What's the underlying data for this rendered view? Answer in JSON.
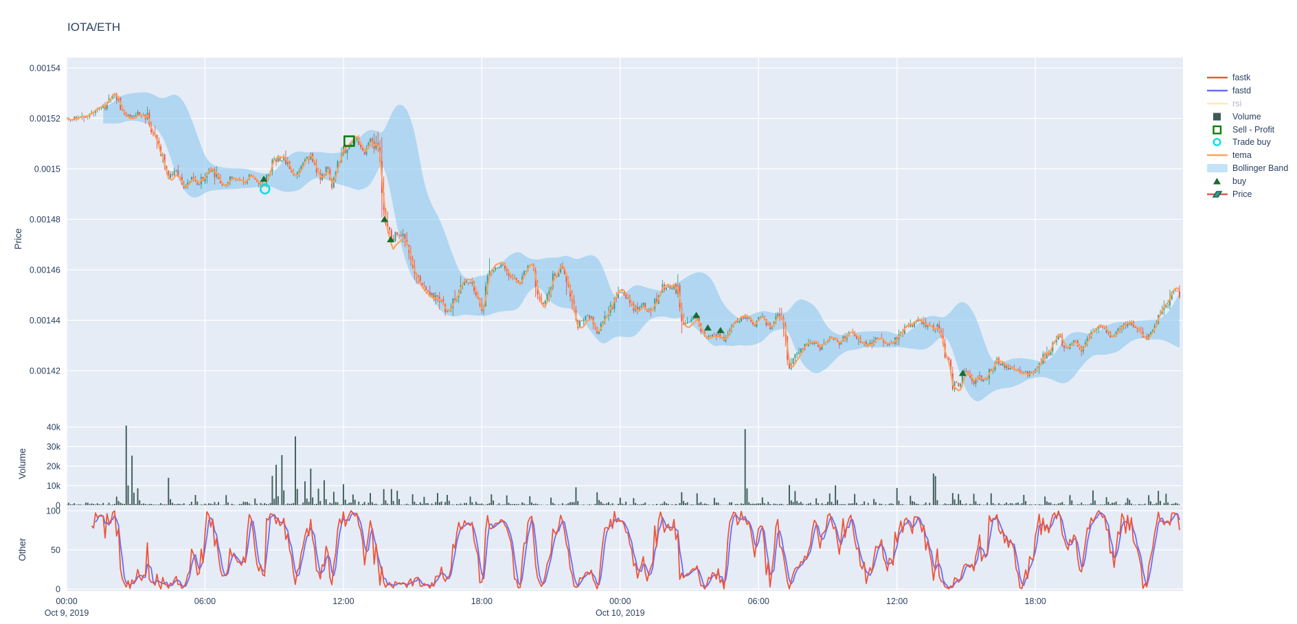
{
  "title": "IOTA/ETH",
  "colors": {
    "plot_bg": "#E5ECF6",
    "grid": "#ffffff",
    "text": "#2a3f5f",
    "dim_text": "#b0b6c5",
    "candle_up": "#2F9E84",
    "candle_down": "#E8544E",
    "tema": "#FFA15A",
    "bollinger_fill": "rgba(133,197,236,0.55)",
    "volume_bar": "#3D5A56",
    "fastk": "#EF553B",
    "fastd": "#636EFA",
    "rsi": "#FFE8B3",
    "buy_marker": "#156E2E",
    "sell_marker": "#0B7D0B",
    "trade_buy_marker": "#00E0E6"
  },
  "legend": {
    "items": [
      {
        "id": "fastk",
        "label": "fastk",
        "type": "line",
        "color": "#EF553B"
      },
      {
        "id": "fastd",
        "label": "fastd",
        "type": "line",
        "color": "#636EFA"
      },
      {
        "id": "rsi",
        "label": "rsi",
        "type": "line",
        "color": "#FFE8B3",
        "dim": true
      },
      {
        "id": "volume",
        "label": "Volume",
        "type": "square",
        "color": "#3D5A56"
      },
      {
        "id": "sell-profit",
        "label": "Sell - Profit",
        "type": "open-square",
        "color": "#0B7D0B"
      },
      {
        "id": "trade-buy",
        "label": "Trade buy",
        "type": "open-circle",
        "color": "#00E0E6"
      },
      {
        "id": "tema",
        "label": "tema",
        "type": "line",
        "color": "#FFA15A"
      },
      {
        "id": "bollinger",
        "label": "Bollinger Band",
        "type": "band",
        "color": "#C3E3F7"
      },
      {
        "id": "buy",
        "label": "buy",
        "type": "triangle",
        "color": "#156E2E"
      },
      {
        "id": "price",
        "label": "Price",
        "type": "candle",
        "color": "#2F9E84"
      }
    ]
  },
  "chart_data": {
    "type": "candlestick",
    "title": "IOTA/ETH",
    "grid": true,
    "legend_position": "right",
    "x_axis": {
      "start": "Oct 9, 2019 00:00",
      "hours_span": 48.4,
      "bars_per_hour": 12,
      "ticks": [
        {
          "h": 0,
          "label": "00:00",
          "day": "Oct 9, 2019"
        },
        {
          "h": 6,
          "label": "06:00"
        },
        {
          "h": 12,
          "label": "12:00"
        },
        {
          "h": 18,
          "label": "18:00"
        },
        {
          "h": 24,
          "label": "00:00",
          "day": "Oct 10, 2019"
        },
        {
          "h": 30,
          "label": "06:00"
        },
        {
          "h": 36,
          "label": "12:00"
        },
        {
          "h": 42,
          "label": "18:00"
        }
      ]
    },
    "panes": [
      {
        "name": "price",
        "ylabel": "Price",
        "range": [
          0.0014,
          0.001544
        ],
        "ticks": [
          {
            "v": 0.00154,
            "label": "0.00154"
          },
          {
            "v": 0.00152,
            "label": "0.00152"
          },
          {
            "v": 0.0015,
            "label": "0.0015"
          },
          {
            "v": 0.00148,
            "label": "0.00148"
          },
          {
            "v": 0.00146,
            "label": "0.00146"
          },
          {
            "v": 0.00144,
            "label": "0.00144"
          },
          {
            "v": 0.00142,
            "label": "0.00142"
          }
        ],
        "series": [
          "Price",
          "tema",
          "Bollinger Band",
          "buy",
          "Sell - Profit",
          "Trade buy"
        ]
      },
      {
        "name": "volume",
        "ylabel": "Volume",
        "range": [
          0,
          43000
        ],
        "ticks": [
          {
            "v": 40000,
            "label": "40k"
          },
          {
            "v": 30000,
            "label": "30k"
          },
          {
            "v": 20000,
            "label": "20k"
          },
          {
            "v": 10000,
            "label": "10k"
          },
          {
            "v": 0,
            "label": "0"
          }
        ],
        "series": [
          "Volume"
        ]
      },
      {
        "name": "other",
        "ylabel": "Other",
        "range": [
          0,
          100
        ],
        "ticks": [
          {
            "v": 100,
            "label": "100"
          },
          {
            "v": 50,
            "label": "50"
          },
          {
            "v": 0,
            "label": "0"
          }
        ],
        "series": [
          "fastk",
          "fastd"
        ]
      }
    ],
    "price_anchors": [
      [
        0,
        0.00152
      ],
      [
        0.5,
        0.00152
      ],
      [
        1.3,
        0.001523
      ],
      [
        1.7,
        0.001525
      ],
      [
        2.1,
        0.00153
      ],
      [
        2.35,
        0.001524
      ],
      [
        2.7,
        0.001521
      ],
      [
        3.1,
        0.001522
      ],
      [
        3.5,
        0.00152
      ],
      [
        3.9,
        0.001509
      ],
      [
        4.15,
        0.001505
      ],
      [
        4.45,
        0.001497
      ],
      [
        4.8,
        0.001499
      ],
      [
        5.1,
        0.001493
      ],
      [
        5.4,
        0.001496
      ],
      [
        5.7,
        0.001494
      ],
      [
        6.2,
        0.0015
      ],
      [
        6.5,
        0.001497
      ],
      [
        6.8,
        0.001493
      ],
      [
        7.2,
        0.001497
      ],
      [
        7.7,
        0.001494
      ],
      [
        8.0,
        0.001498
      ],
      [
        8.3,
        0.001495
      ],
      [
        8.55,
        0.001493
      ],
      [
        8.8,
        0.001501
      ],
      [
        9.2,
        0.001504
      ],
      [
        9.55,
        0.001503
      ],
      [
        9.85,
        0.001497
      ],
      [
        10.25,
        0.001503
      ],
      [
        10.65,
        0.001505
      ],
      [
        11.0,
        0.001495
      ],
      [
        11.3,
        0.001501
      ],
      [
        11.5,
        0.001493
      ],
      [
        11.9,
        0.001505
      ],
      [
        12.2,
        0.00151
      ],
      [
        12.6,
        0.001512
      ],
      [
        12.9,
        0.001506
      ],
      [
        13.2,
        0.001512
      ],
      [
        13.5,
        0.001505
      ],
      [
        13.7,
        0.00149
      ],
      [
        13.85,
        0.001479
      ],
      [
        14.05,
        0.001471
      ],
      [
        14.3,
        0.001475
      ],
      [
        14.6,
        0.001472
      ],
      [
        14.9,
        0.001462
      ],
      [
        15.2,
        0.001458
      ],
      [
        15.5,
        0.001453
      ],
      [
        15.8,
        0.00145
      ],
      [
        16.1,
        0.001449
      ],
      [
        16.5,
        0.001443
      ],
      [
        16.8,
        0.001448
      ],
      [
        17.3,
        0.001456
      ],
      [
        17.7,
        0.001452
      ],
      [
        18.0,
        0.001444
      ],
      [
        18.4,
        0.001461
      ],
      [
        18.85,
        0.001461
      ],
      [
        19.3,
        0.001457
      ],
      [
        19.65,
        0.001455
      ],
      [
        20.1,
        0.001463
      ],
      [
        20.65,
        0.001446
      ],
      [
        21.0,
        0.001455
      ],
      [
        21.5,
        0.001462
      ],
      [
        21.9,
        0.001447
      ],
      [
        22.1,
        0.001438
      ],
      [
        22.45,
        0.001441
      ],
      [
        22.7,
        0.001442
      ],
      [
        23.0,
        0.001435
      ],
      [
        23.3,
        0.00144
      ],
      [
        23.9,
        0.00145
      ],
      [
        24.2,
        0.00145
      ],
      [
        24.6,
        0.001444
      ],
      [
        25.0,
        0.001446
      ],
      [
        25.3,
        0.001443
      ],
      [
        25.8,
        0.001453
      ],
      [
        26.5,
        0.001453
      ],
      [
        26.65,
        0.001442
      ],
      [
        26.85,
        0.001438
      ],
      [
        27.3,
        0.001441
      ],
      [
        27.65,
        0.001433
      ],
      [
        28.05,
        0.001435
      ],
      [
        28.5,
        0.001432
      ],
      [
        28.95,
        0.00144
      ],
      [
        29.5,
        0.001441
      ],
      [
        29.8,
        0.001438
      ],
      [
        30.1,
        0.001442
      ],
      [
        30.5,
        0.001437
      ],
      [
        30.75,
        0.001441
      ],
      [
        31.0,
        0.001442
      ],
      [
        31.3,
        0.001423
      ],
      [
        31.6,
        0.001426
      ],
      [
        31.9,
        0.001429
      ],
      [
        32.3,
        0.001431
      ],
      [
        32.7,
        0.001429
      ],
      [
        33.1,
        0.001433
      ],
      [
        33.5,
        0.001431
      ],
      [
        34.0,
        0.001436
      ],
      [
        34.4,
        0.001432
      ],
      [
        34.8,
        0.00143
      ],
      [
        35.2,
        0.001434
      ],
      [
        35.6,
        0.00143
      ],
      [
        36.0,
        0.001433
      ],
      [
        36.55,
        0.001438
      ],
      [
        37.0,
        0.00144
      ],
      [
        37.4,
        0.001437
      ],
      [
        37.7,
        0.001438
      ],
      [
        38.1,
        0.001428
      ],
      [
        38.4,
        0.001415
      ],
      [
        38.65,
        0.001414
      ],
      [
        38.9,
        0.001419
      ],
      [
        39.1,
        0.001419
      ],
      [
        39.25,
        0.001415
      ],
      [
        39.5,
        0.001417
      ],
      [
        39.8,
        0.001417
      ],
      [
        40.0,
        0.001419
      ],
      [
        40.3,
        0.001424
      ],
      [
        40.9,
        0.001421
      ],
      [
        41.3,
        0.001419
      ],
      [
        41.7,
        0.001419
      ],
      [
        42.0,
        0.001421
      ],
      [
        42.3,
        0.001425
      ],
      [
        42.6,
        0.001428
      ],
      [
        43.0,
        0.001434
      ],
      [
        43.3,
        0.001428
      ],
      [
        43.7,
        0.001432
      ],
      [
        44.0,
        0.001428
      ],
      [
        44.3,
        0.001434
      ],
      [
        44.9,
        0.001438
      ],
      [
        45.35,
        0.001433
      ],
      [
        45.85,
        0.001438
      ],
      [
        46.15,
        0.001439
      ],
      [
        46.5,
        0.001435
      ],
      [
        46.85,
        0.001432
      ],
      [
        47.35,
        0.001442
      ],
      [
        47.75,
        0.001446
      ],
      [
        48.05,
        0.001453
      ],
      [
        48.33,
        0.001447
      ]
    ],
    "volume_spikes": [
      [
        2.2,
        4000
      ],
      [
        2.6,
        40500
      ],
      [
        2.85,
        23500
      ],
      [
        3.05,
        8000
      ],
      [
        4.45,
        13000
      ],
      [
        5.6,
        3500
      ],
      [
        6.9,
        5000
      ],
      [
        8.2,
        3000
      ],
      [
        8.9,
        14500
      ],
      [
        9.1,
        20500
      ],
      [
        9.3,
        25500
      ],
      [
        9.9,
        35000
      ],
      [
        10.3,
        12000
      ],
      [
        10.6,
        17500
      ],
      [
        10.9,
        8000
      ],
      [
        11.2,
        12000
      ],
      [
        11.6,
        6000
      ],
      [
        12.0,
        10500
      ],
      [
        12.4,
        5000
      ],
      [
        13.2,
        6000
      ],
      [
        13.75,
        8000
      ],
      [
        14.05,
        7000
      ],
      [
        14.35,
        6500
      ],
      [
        15.0,
        5500
      ],
      [
        15.5,
        4000
      ],
      [
        16.1,
        6000
      ],
      [
        16.5,
        4500
      ],
      [
        17.5,
        4000
      ],
      [
        18.4,
        5000
      ],
      [
        19.1,
        4500
      ],
      [
        20.1,
        4000
      ],
      [
        21.0,
        3500
      ],
      [
        22.1,
        7500
      ],
      [
        23.0,
        5500
      ],
      [
        24.0,
        3000
      ],
      [
        24.6,
        3500
      ],
      [
        26.7,
        6500
      ],
      [
        27.3,
        4200
      ],
      [
        28.1,
        3500
      ],
      [
        29.4,
        38500
      ],
      [
        30.2,
        3000
      ],
      [
        31.3,
        10000
      ],
      [
        31.6,
        6000
      ],
      [
        32.5,
        3000
      ],
      [
        33.1,
        5500
      ],
      [
        33.3,
        10000
      ],
      [
        34.2,
        4500
      ],
      [
        35.0,
        3000
      ],
      [
        36.0,
        8000
      ],
      [
        36.6,
        4200
      ],
      [
        37.55,
        14500
      ],
      [
        37.7,
        11000
      ],
      [
        38.45,
        6000
      ],
      [
        38.7,
        5200
      ],
      [
        39.3,
        5000
      ],
      [
        40.1,
        4200
      ],
      [
        41.5,
        4500
      ],
      [
        42.4,
        3800
      ],
      [
        43.5,
        4200
      ],
      [
        44.5,
        6200
      ],
      [
        45.1,
        4000
      ],
      [
        46.0,
        3500
      ],
      [
        46.9,
        4000
      ],
      [
        47.3,
        6200
      ],
      [
        47.7,
        5200
      ]
    ],
    "volume_base_range": [
      120,
      2200
    ],
    "trades": {
      "buy_signals": [
        [
          8.55,
          0.001496
        ],
        [
          13.78,
          0.00148
        ],
        [
          14.05,
          0.001472
        ],
        [
          27.3,
          0.001442
        ],
        [
          27.8,
          0.001437
        ],
        [
          28.35,
          0.001436
        ],
        [
          38.85,
          0.001419
        ]
      ],
      "trade_buys": [
        [
          8.6,
          0.001492
        ]
      ],
      "sell_profits": [
        [
          12.25,
          0.001511
        ]
      ]
    },
    "oscillator": {
      "fastk_period": 14,
      "fastd_smooth": 3,
      "ylim": [
        0,
        100
      ]
    },
    "indicators": {
      "tema_period": 8,
      "bollinger_period": 20,
      "bollinger_stddev": 2
    },
    "render_seed": 1234567
  }
}
